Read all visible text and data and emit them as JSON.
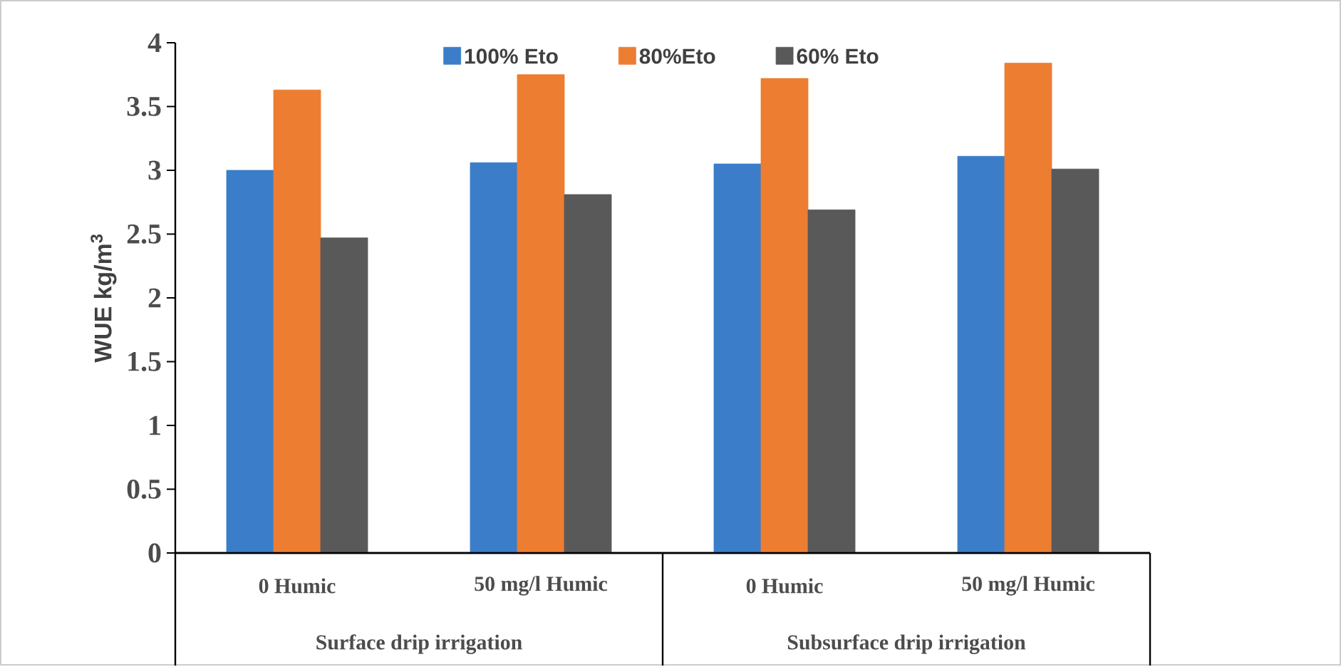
{
  "chart_data": {
    "type": "bar",
    "ylabel": "WUE kg/m$^{3}$",
    "categories": [
      "0 Humic",
      "50 mg/l Humic",
      "0 Humic",
      "50 mg/l Humic"
    ],
    "series": [
      {
        "name": "100% Eto",
        "color": "#3b7dc8",
        "values": [
          3.0,
          3.06,
          3.05,
          3.11
        ]
      },
      {
        "name": "80%Eto",
        "color": "#ed7d31",
        "values": [
          3.63,
          3.75,
          3.72,
          3.84
        ]
      },
      {
        "name": "60% Eto",
        "color": "#595959",
        "values": [
          2.47,
          2.81,
          2.69,
          3.01
        ]
      }
    ],
    "ylim": [
      0,
      4
    ],
    "yticks": [
      0,
      0.5,
      1,
      1.5,
      2,
      2.5,
      3,
      3.5,
      4
    ],
    "legend": "top",
    "annotations": [
      "Surface drip irrigation",
      "Subsurface drip irrigation"
    ]
  }
}
